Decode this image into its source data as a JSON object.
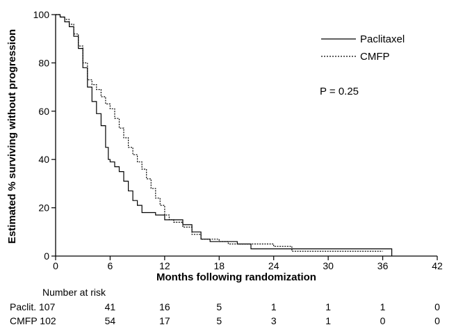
{
  "chart_data": {
    "type": "line",
    "title": "",
    "xlabel": "Months following randomization",
    "ylabel": "Estimated % surviving without progression",
    "xlim": [
      0,
      42
    ],
    "ylim": [
      0,
      100
    ],
    "xticks": [
      "0",
      "6",
      "12",
      "18",
      "24",
      "30",
      "36",
      "42"
    ],
    "yticks": [
      "0",
      "20",
      "40",
      "60",
      "80",
      "100"
    ],
    "legend_position": "top-right",
    "annotation": "P = 0.25",
    "series": [
      {
        "name": "Paclitaxel",
        "style": "solid",
        "points": [
          [
            0,
            100
          ],
          [
            0.5,
            99
          ],
          [
            1,
            97
          ],
          [
            1.5,
            95
          ],
          [
            2,
            91
          ],
          [
            2.5,
            86
          ],
          [
            3,
            78
          ],
          [
            3.5,
            70
          ],
          [
            4,
            64
          ],
          [
            4.5,
            59
          ],
          [
            5,
            54
          ],
          [
            5.5,
            45
          ],
          [
            5.8,
            40
          ],
          [
            6,
            39
          ],
          [
            6.5,
            37
          ],
          [
            7,
            35
          ],
          [
            7.5,
            31
          ],
          [
            8,
            27
          ],
          [
            8.5,
            23
          ],
          [
            9,
            21
          ],
          [
            9.5,
            18
          ],
          [
            10,
            18
          ],
          [
            11,
            17
          ],
          [
            12,
            15
          ],
          [
            13,
            15
          ],
          [
            14,
            13
          ],
          [
            15,
            10
          ],
          [
            16,
            7
          ],
          [
            17,
            6
          ],
          [
            18,
            6
          ],
          [
            20,
            5
          ],
          [
            21,
            5
          ],
          [
            21.5,
            3
          ],
          [
            30,
            3
          ],
          [
            36,
            3
          ],
          [
            36.5,
            3
          ],
          [
            37,
            0
          ]
        ]
      },
      {
        "name": "CMFP",
        "style": "dotted",
        "points": [
          [
            0,
            100
          ],
          [
            0.5,
            99
          ],
          [
            1,
            98
          ],
          [
            1.5,
            96
          ],
          [
            2,
            92
          ],
          [
            2.5,
            87
          ],
          [
            3,
            80
          ],
          [
            3.5,
            73
          ],
          [
            4,
            71
          ],
          [
            4.5,
            69
          ],
          [
            5,
            66
          ],
          [
            5.5,
            63
          ],
          [
            6,
            61
          ],
          [
            6.5,
            57
          ],
          [
            7,
            53
          ],
          [
            7.5,
            49
          ],
          [
            8,
            45
          ],
          [
            8.5,
            42
          ],
          [
            9,
            39
          ],
          [
            9.5,
            36
          ],
          [
            10,
            32
          ],
          [
            10.5,
            28
          ],
          [
            11,
            24
          ],
          [
            11.5,
            21
          ],
          [
            12,
            17
          ],
          [
            12.5,
            15
          ],
          [
            13,
            14
          ],
          [
            14,
            12
          ],
          [
            15,
            9
          ],
          [
            16,
            7
          ],
          [
            17,
            7
          ],
          [
            18,
            6
          ],
          [
            19,
            5
          ],
          [
            21,
            5
          ],
          [
            24,
            4
          ],
          [
            25,
            4
          ],
          [
            26,
            2
          ],
          [
            30,
            2
          ],
          [
            36,
            2
          ]
        ]
      }
    ]
  },
  "risk_table": {
    "header": "Number at risk",
    "rows": [
      {
        "label": "Paclit. 107",
        "values": [
          "41",
          "16",
          "5",
          "1",
          "1",
          "1",
          "0"
        ]
      },
      {
        "label": "CMFP 102",
        "values": [
          "54",
          "17",
          "5",
          "3",
          "1",
          "0",
          "0"
        ]
      }
    ]
  }
}
